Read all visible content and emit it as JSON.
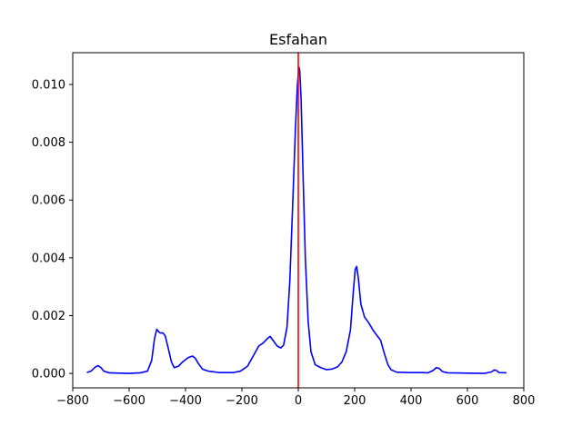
{
  "chart_data": {
    "type": "line",
    "title": "Esfahan",
    "xlabel": "",
    "ylabel": "",
    "xlim": [
      -800,
      800
    ],
    "ylim": [
      -0.0005,
      0.0111
    ],
    "x_ticks": [
      -800,
      -600,
      -400,
      -200,
      0,
      200,
      400,
      600,
      800
    ],
    "x_tick_labels": [
      "−800",
      "−600",
      "−400",
      "−200",
      "0",
      "200",
      "400",
      "600",
      "800"
    ],
    "y_ticks": [
      0.0,
      0.002,
      0.004,
      0.006,
      0.008,
      0.01
    ],
    "y_tick_labels": [
      "0.000",
      "0.002",
      "0.004",
      "0.006",
      "0.008",
      "0.010"
    ],
    "grid": false,
    "legend": "none",
    "reference_line": {
      "x": 0,
      "color": "#ff0000"
    },
    "series": [
      {
        "color": "#0000ff",
        "points": [
          [
            -750,
            3e-05
          ],
          [
            -735,
            8e-05
          ],
          [
            -720,
            0.00022
          ],
          [
            -710,
            0.00027
          ],
          [
            -700,
            0.0002
          ],
          [
            -690,
            8e-05
          ],
          [
            -670,
            2e-05
          ],
          [
            -600,
            0.0
          ],
          [
            -560,
            2e-05
          ],
          [
            -535,
            8e-05
          ],
          [
            -520,
            0.00045
          ],
          [
            -510,
            0.0012
          ],
          [
            -502,
            0.00153
          ],
          [
            -496,
            0.00145
          ],
          [
            -490,
            0.0014
          ],
          [
            -480,
            0.0014
          ],
          [
            -472,
            0.0013
          ],
          [
            -462,
            0.0009
          ],
          [
            -450,
            0.0004
          ],
          [
            -440,
            0.0002
          ],
          [
            -425,
            0.00025
          ],
          [
            -410,
            0.0004
          ],
          [
            -390,
            0.00055
          ],
          [
            -375,
            0.0006
          ],
          [
            -365,
            0.00052
          ],
          [
            -355,
            0.00035
          ],
          [
            -340,
            0.00015
          ],
          [
            -320,
            8e-05
          ],
          [
            -280,
            3e-05
          ],
          [
            -230,
            3e-05
          ],
          [
            -205,
            8e-05
          ],
          [
            -180,
            0.00025
          ],
          [
            -160,
            0.0006
          ],
          [
            -140,
            0.00095
          ],
          [
            -125,
            0.00105
          ],
          [
            -110,
            0.0012
          ],
          [
            -100,
            0.00128
          ],
          [
            -90,
            0.00115
          ],
          [
            -75,
            0.00095
          ],
          [
            -62,
            0.00088
          ],
          [
            -52,
            0.00098
          ],
          [
            -40,
            0.0016
          ],
          [
            -30,
            0.0032
          ],
          [
            -20,
            0.0058
          ],
          [
            -10,
            0.0085
          ],
          [
            -3,
            0.01
          ],
          [
            2,
            0.0106
          ],
          [
            5,
            0.0105
          ],
          [
            10,
            0.0095
          ],
          [
            18,
            0.0065
          ],
          [
            25,
            0.004
          ],
          [
            35,
            0.0018
          ],
          [
            45,
            0.00075
          ],
          [
            60,
            0.0003
          ],
          [
            80,
            0.0002
          ],
          [
            100,
            0.00013
          ],
          [
            120,
            0.00015
          ],
          [
            140,
            0.00023
          ],
          [
            155,
            0.0004
          ],
          [
            170,
            0.00075
          ],
          [
            185,
            0.0015
          ],
          [
            195,
            0.0028
          ],
          [
            202,
            0.0036
          ],
          [
            207,
            0.0037
          ],
          [
            213,
            0.0033
          ],
          [
            222,
            0.0024
          ],
          [
            235,
            0.00195
          ],
          [
            250,
            0.00175
          ],
          [
            265,
            0.0015
          ],
          [
            280,
            0.0013
          ],
          [
            292,
            0.00115
          ],
          [
            305,
            0.0007
          ],
          [
            318,
            0.0003
          ],
          [
            330,
            0.00012
          ],
          [
            350,
            4e-05
          ],
          [
            400,
            3e-05
          ],
          [
            440,
            3e-05
          ],
          [
            460,
            2e-05
          ],
          [
            478,
            0.0001
          ],
          [
            490,
            0.0002
          ],
          [
            500,
            0.00017
          ],
          [
            512,
            6e-05
          ],
          [
            530,
            2e-05
          ],
          [
            600,
            1e-05
          ],
          [
            660,
            0.0
          ],
          [
            685,
            5e-05
          ],
          [
            695,
            0.00012
          ],
          [
            703,
            0.0001
          ],
          [
            712,
            3e-05
          ],
          [
            738,
            2e-05
          ]
        ]
      }
    ]
  }
}
